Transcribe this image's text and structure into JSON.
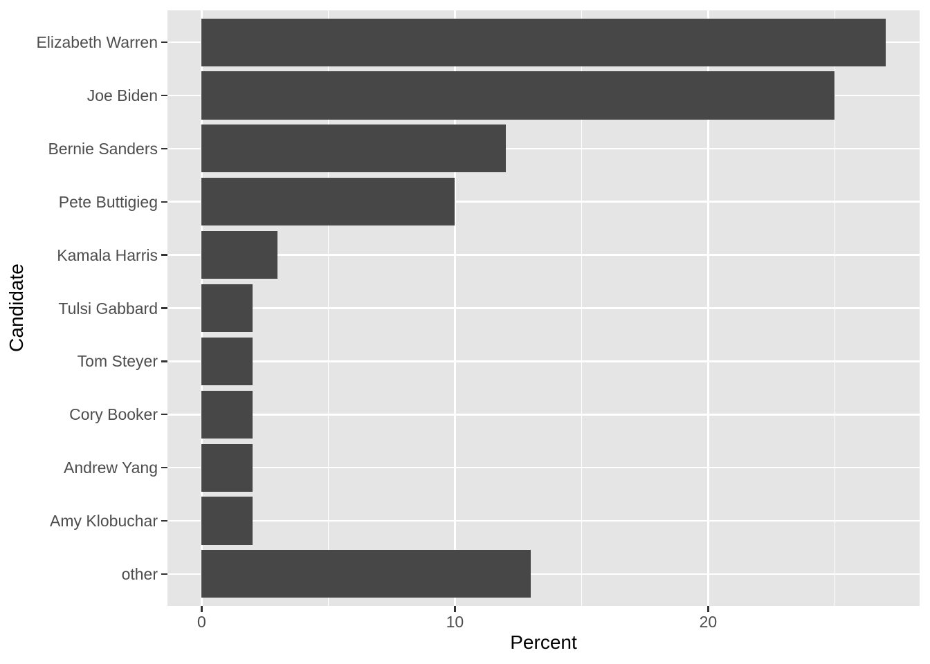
{
  "chart_data": {
    "type": "bar",
    "orientation": "horizontal",
    "title": "",
    "xlabel": "Percent",
    "ylabel": "Candidate",
    "categories": [
      "Elizabeth Warren",
      "Joe Biden",
      "Bernie Sanders",
      "Pete Buttigieg",
      "Kamala Harris",
      "Tulsi Gabbard",
      "Tom Steyer",
      "Cory Booker",
      "Andrew Yang",
      "Amy Klobuchar",
      "other"
    ],
    "values": [
      27,
      25,
      12,
      10,
      3,
      2,
      2,
      2,
      2,
      2,
      13
    ],
    "x_tick_labels": [
      "0",
      "10",
      "20"
    ],
    "x_major_ticks": [
      0,
      10,
      20
    ],
    "x_minor_gridlines": [
      5,
      15,
      25
    ],
    "xlim": [
      -1.35,
      28.35
    ],
    "bar_width_fraction": 0.9,
    "grid": "white major gridlines at x ticks and y category centers, thinner white minor gridlines at 5/15/25, on gray panel",
    "legend_position": "none",
    "colors": {
      "bar_fill": "#474747",
      "panel_background": "#E5E5E5",
      "grid_major": "#FFFFFF",
      "grid_minor": "#FFFFFF",
      "tick_mark": "#333333",
      "tick_text": "#4D4D4D",
      "axis_title_text": "#000000",
      "page_background": "#FFFFFF"
    }
  }
}
